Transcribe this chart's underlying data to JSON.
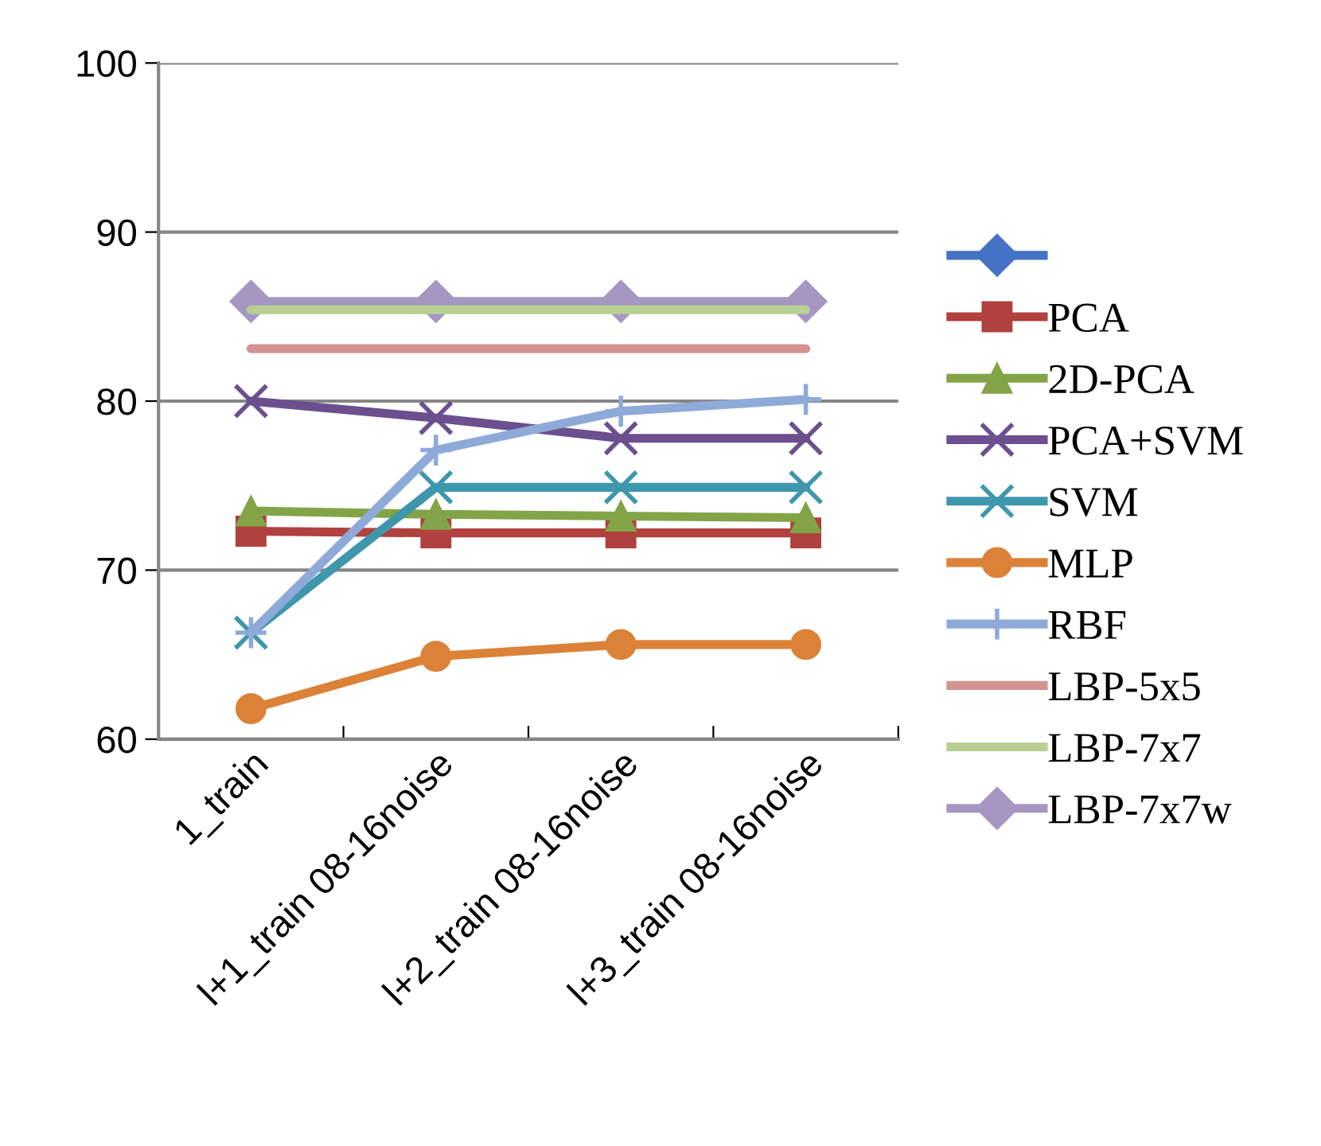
{
  "chart_data": {
    "type": "line",
    "categories": [
      "1_train",
      "l+1_train 08-16noise",
      "l+2_train 08-16noise",
      "l+3_train 08-16noise"
    ],
    "ylim": [
      60,
      100
    ],
    "yticks": [
      60,
      70,
      80,
      90,
      100
    ],
    "grid": "y",
    "legend": "right",
    "series": [
      {
        "color": "#4472c4",
        "marker": "diamond",
        "values": [
          null,
          null,
          null,
          null
        ]
      },
      {
        "name": "PCA",
        "color": "#b0413e",
        "marker": "square",
        "values": [
          72.3,
          72.2,
          72.2,
          72.2
        ]
      },
      {
        "name": "2D-PCA",
        "color": "#82a447",
        "marker": "triangle",
        "values": [
          73.5,
          73.3,
          73.2,
          73.1
        ]
      },
      {
        "name": "PCA+SVM",
        "color": "#6c4f8f",
        "marker": "cross",
        "values": [
          80.0,
          79.0,
          77.8,
          77.8
        ]
      },
      {
        "name": "SVM",
        "color": "#3e97ac",
        "marker": "cross",
        "values": [
          66.3,
          74.9,
          74.9,
          74.9
        ]
      },
      {
        "name": "MLP",
        "color": "#db8238",
        "marker": "circle",
        "values": [
          61.8,
          64.9,
          65.6,
          65.6
        ]
      },
      {
        "name": "RBF",
        "color": "#8eaad8",
        "marker": "plus",
        "values": [
          66.3,
          77.1,
          79.4,
          80.1
        ]
      },
      {
        "name": "LBP-5x5",
        "color": "#d39391",
        "marker": "none",
        "values": [
          83.1,
          83.1,
          83.1,
          83.1
        ]
      },
      {
        "name": "LBP-7x7",
        "color": "#b8d193",
        "marker": "none",
        "values": [
          85.4,
          85.4,
          85.4,
          85.4
        ]
      },
      {
        "name": "LBP-7x7w",
        "color": "#a597c2",
        "marker": "diamond",
        "values": [
          85.9,
          85.9,
          85.9,
          85.9
        ]
      }
    ]
  }
}
